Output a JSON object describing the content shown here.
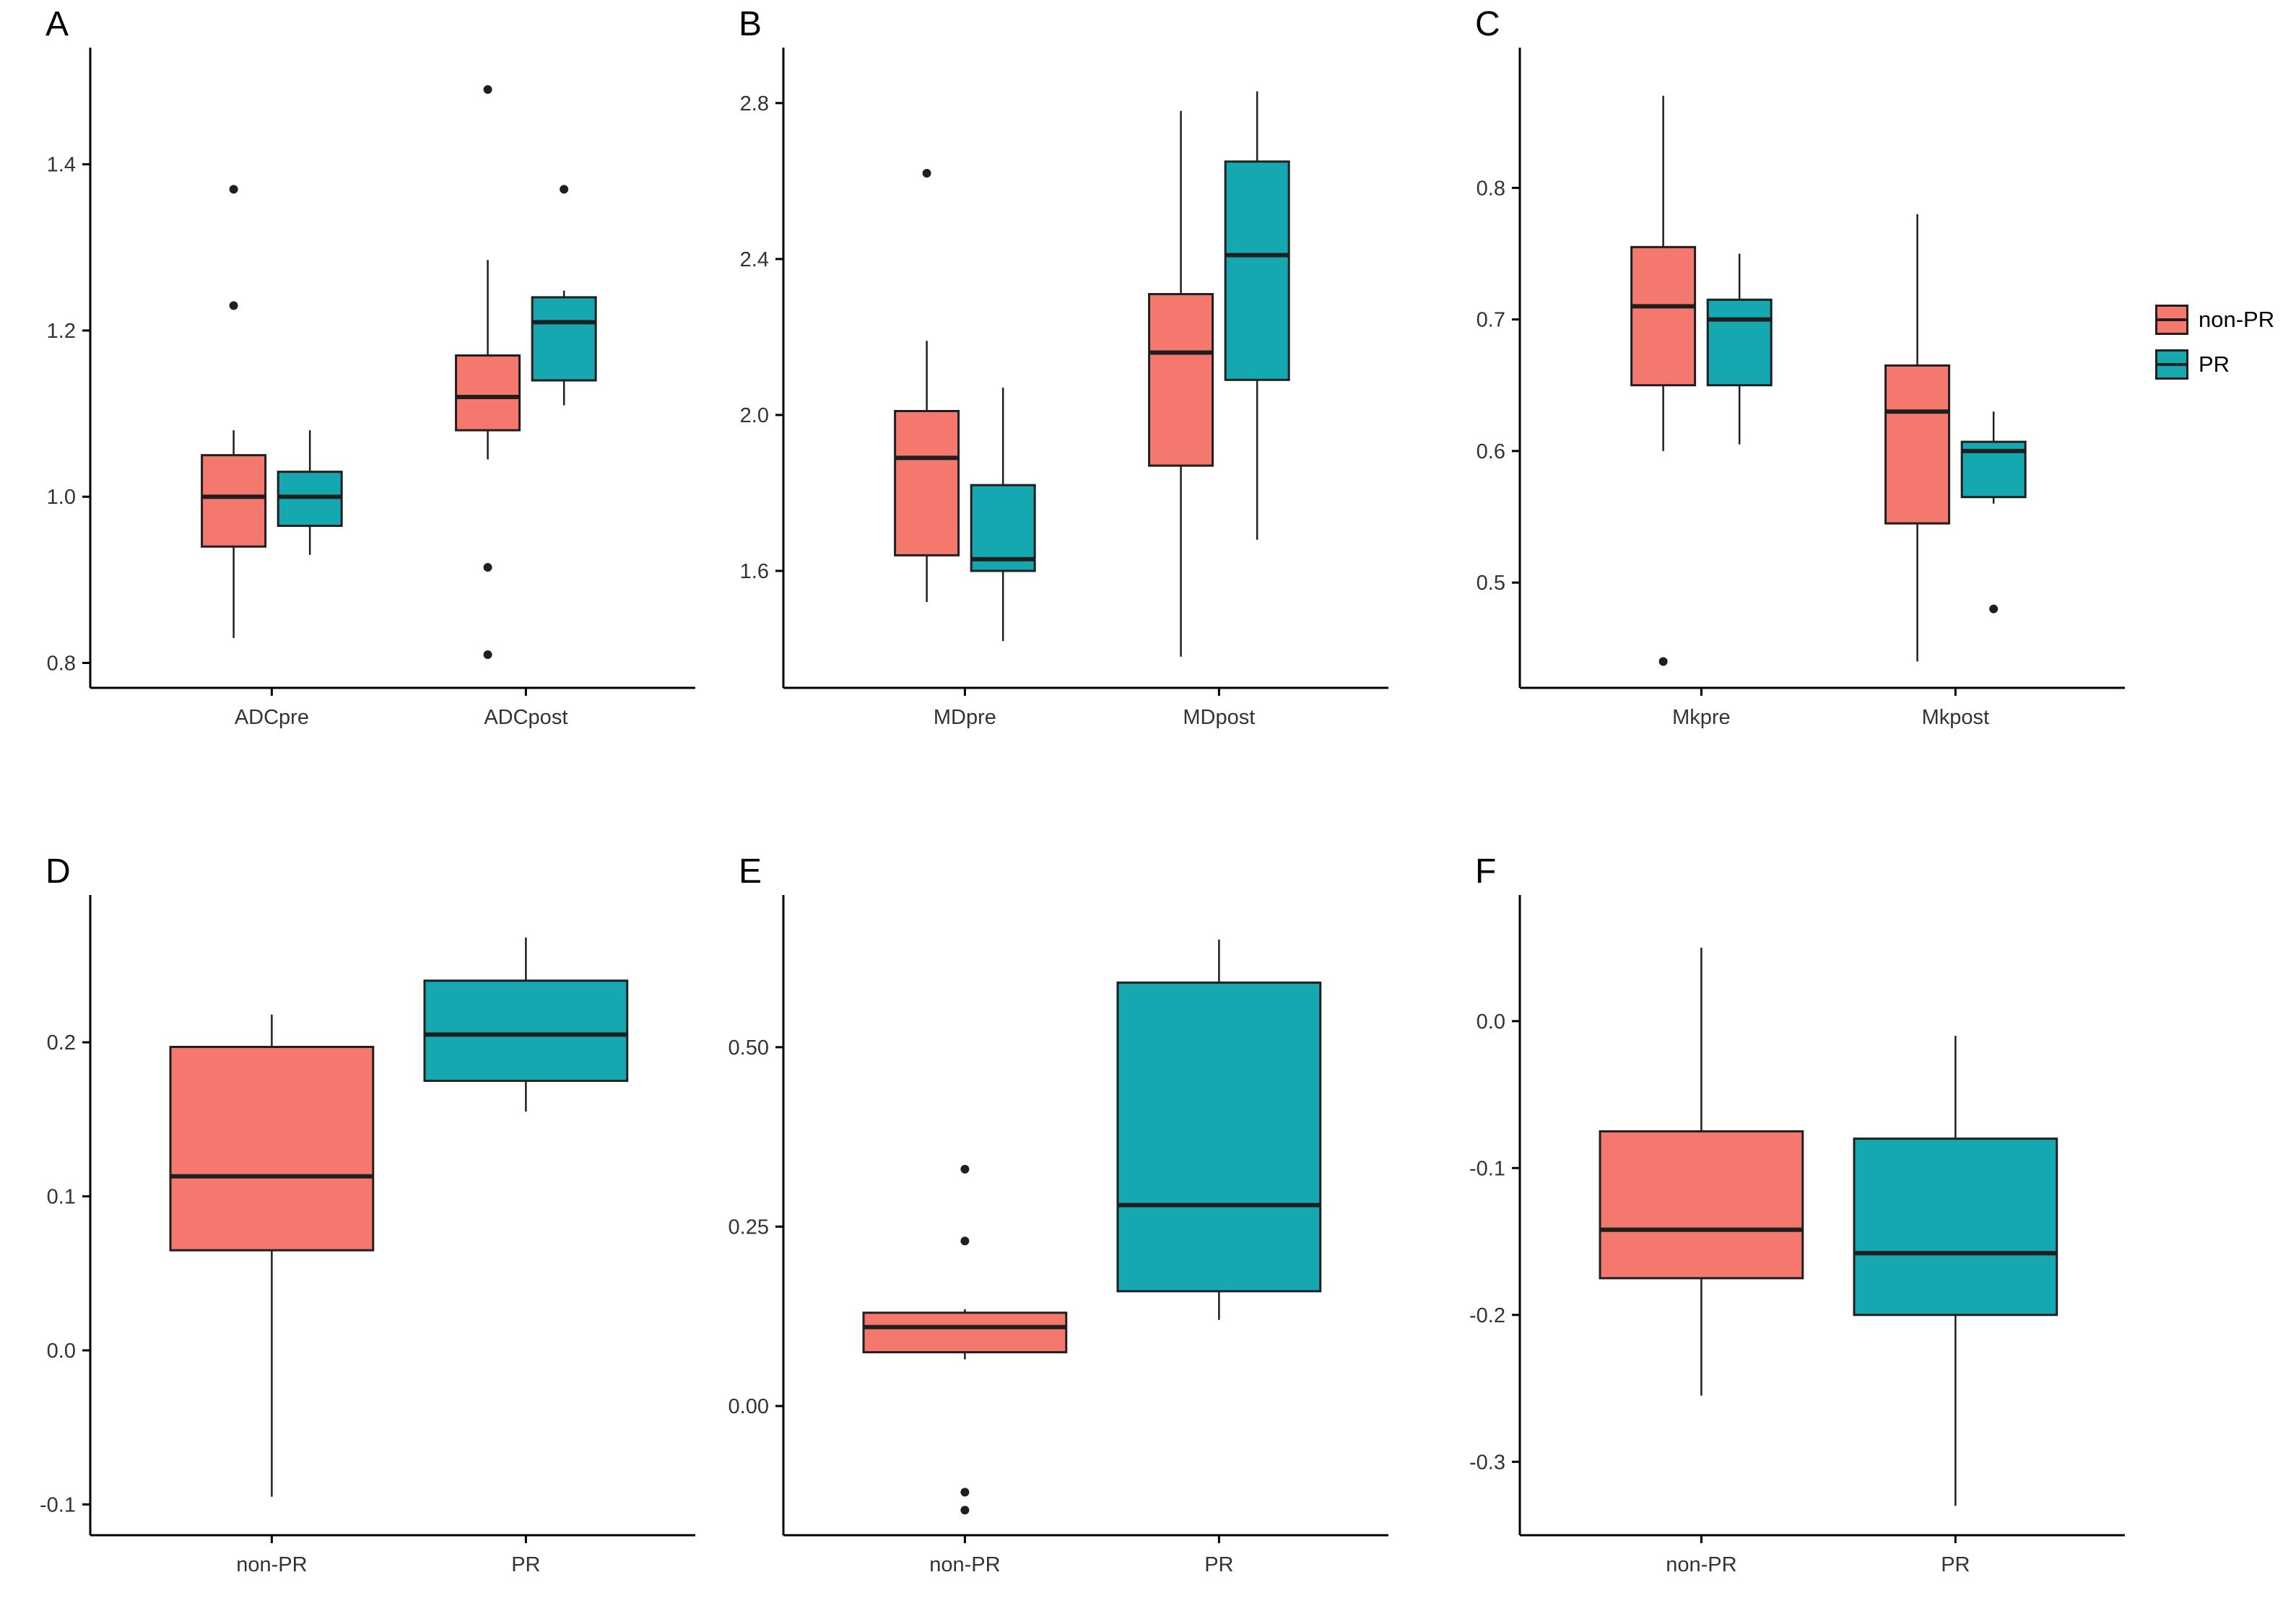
{
  "colors": {
    "non_pr": "#F4786D",
    "pr": "#16A8B0",
    "axis": "#000000",
    "box_stroke": "#1f1f1f",
    "tick_text": "#333333"
  },
  "legend": {
    "items": [
      {
        "label": "non-PR",
        "color_key": "non_pr"
      },
      {
        "label": "PR",
        "color_key": "pr"
      }
    ]
  },
  "chart_data": [
    {
      "panel_label": "A",
      "type": "boxplot",
      "grouped": true,
      "series": [
        "non-PR",
        "PR"
      ],
      "categories": [
        "ADCpre",
        "ADCpost"
      ],
      "y_domain": [
        0.77,
        1.53
      ],
      "y_ticks": [
        {
          "value": 0.8,
          "label": "0.8"
        },
        {
          "value": 1.0,
          "label": "1.0"
        },
        {
          "value": 1.2,
          "label": "1.2"
        },
        {
          "value": 1.4,
          "label": "1.4"
        }
      ],
      "boxes": [
        {
          "category": "ADCpre",
          "series": "non-PR",
          "color_key": "non_pr",
          "whisker_low": 0.83,
          "q1": 0.94,
          "median": 1.0,
          "q3": 1.05,
          "whisker_high": 1.08,
          "outliers": [
            1.23,
            1.37
          ]
        },
        {
          "category": "ADCpre",
          "series": "PR",
          "color_key": "pr",
          "whisker_low": 0.93,
          "q1": 0.965,
          "median": 1.0,
          "q3": 1.03,
          "whisker_high": 1.08,
          "outliers": []
        },
        {
          "category": "ADCpost",
          "series": "non-PR",
          "color_key": "non_pr",
          "whisker_low": 1.045,
          "q1": 1.08,
          "median": 1.12,
          "q3": 1.17,
          "whisker_high": 1.285,
          "outliers": [
            1.49,
            0.915,
            0.81
          ]
        },
        {
          "category": "ADCpost",
          "series": "PR",
          "color_key": "pr",
          "whisker_low": 1.11,
          "q1": 1.14,
          "median": 1.21,
          "q3": 1.24,
          "whisker_high": 1.248,
          "outliers": [
            1.37
          ]
        }
      ]
    },
    {
      "panel_label": "B",
      "type": "boxplot",
      "grouped": true,
      "series": [
        "non-PR",
        "PR"
      ],
      "categories": [
        "MDpre",
        "MDpost"
      ],
      "y_domain": [
        1.3,
        2.92
      ],
      "y_ticks": [
        {
          "value": 1.6,
          "label": "1.6"
        },
        {
          "value": 2.0,
          "label": "2.0"
        },
        {
          "value": 2.4,
          "label": "2.4"
        },
        {
          "value": 2.8,
          "label": "2.8"
        }
      ],
      "boxes": [
        {
          "category": "MDpre",
          "series": "non-PR",
          "color_key": "non_pr",
          "whisker_low": 1.52,
          "q1": 1.64,
          "median": 1.89,
          "q3": 2.01,
          "whisker_high": 2.19,
          "outliers": [
            2.62
          ]
        },
        {
          "category": "MDpre",
          "series": "PR",
          "color_key": "pr",
          "whisker_low": 1.42,
          "q1": 1.6,
          "median": 1.63,
          "q3": 1.82,
          "whisker_high": 2.07,
          "outliers": []
        },
        {
          "category": "MDpost",
          "series": "non-PR",
          "color_key": "non_pr",
          "whisker_low": 1.38,
          "q1": 1.87,
          "median": 2.16,
          "q3": 2.31,
          "whisker_high": 2.78,
          "outliers": []
        },
        {
          "category": "MDpost",
          "series": "PR",
          "color_key": "pr",
          "whisker_low": 1.68,
          "q1": 2.09,
          "median": 2.41,
          "q3": 2.65,
          "whisker_high": 2.83,
          "outliers": []
        }
      ]
    },
    {
      "panel_label": "C",
      "type": "boxplot",
      "grouped": true,
      "series": [
        "non-PR",
        "PR"
      ],
      "categories": [
        "Mkpre",
        "Mkpost"
      ],
      "y_domain": [
        0.42,
        0.9
      ],
      "y_ticks": [
        {
          "value": 0.5,
          "label": "0.5"
        },
        {
          "value": 0.6,
          "label": "0.6"
        },
        {
          "value": 0.7,
          "label": "0.7"
        },
        {
          "value": 0.8,
          "label": "0.8"
        }
      ],
      "boxes": [
        {
          "category": "Mkpre",
          "series": "non-PR",
          "color_key": "non_pr",
          "whisker_low": 0.6,
          "q1": 0.65,
          "median": 0.71,
          "q3": 0.755,
          "whisker_high": 0.87,
          "outliers": [
            0.44
          ]
        },
        {
          "category": "Mkpre",
          "series": "PR",
          "color_key": "pr",
          "whisker_low": 0.605,
          "q1": 0.65,
          "median": 0.7,
          "q3": 0.715,
          "whisker_high": 0.75,
          "outliers": []
        },
        {
          "category": "Mkpost",
          "series": "non-PR",
          "color_key": "non_pr",
          "whisker_low": 0.44,
          "q1": 0.545,
          "median": 0.63,
          "q3": 0.665,
          "whisker_high": 0.78,
          "outliers": []
        },
        {
          "category": "Mkpost",
          "series": "PR",
          "color_key": "pr",
          "whisker_low": 0.56,
          "q1": 0.565,
          "median": 0.6,
          "q3": 0.607,
          "whisker_high": 0.63,
          "outliers": [
            0.48
          ]
        }
      ]
    },
    {
      "panel_label": "D",
      "type": "boxplot",
      "grouped": false,
      "series": [
        "non-PR",
        "PR"
      ],
      "categories": [
        "non-PR",
        "PR"
      ],
      "y_domain": [
        -0.12,
        0.29
      ],
      "y_ticks": [
        {
          "value": -0.1,
          "label": "-0.1"
        },
        {
          "value": 0.0,
          "label": "0.0"
        },
        {
          "value": 0.1,
          "label": "0.1"
        },
        {
          "value": 0.2,
          "label": "0.2"
        }
      ],
      "boxes": [
        {
          "category": "non-PR",
          "series": "non-PR",
          "color_key": "non_pr",
          "whisker_low": -0.095,
          "q1": 0.065,
          "median": 0.113,
          "q3": 0.197,
          "whisker_high": 0.218,
          "outliers": []
        },
        {
          "category": "PR",
          "series": "PR",
          "color_key": "pr",
          "whisker_low": 0.155,
          "q1": 0.175,
          "median": 0.205,
          "q3": 0.24,
          "whisker_high": 0.268,
          "outliers": []
        }
      ]
    },
    {
      "panel_label": "E",
      "type": "boxplot",
      "grouped": false,
      "series": [
        "non-PR",
        "PR"
      ],
      "categories": [
        "non-PR",
        "PR"
      ],
      "y_domain": [
        -0.18,
        0.7
      ],
      "y_ticks": [
        {
          "value": 0.0,
          "label": "0.00"
        },
        {
          "value": 0.25,
          "label": "0.25"
        },
        {
          "value": 0.5,
          "label": "0.50"
        }
      ],
      "boxes": [
        {
          "category": "non-PR",
          "series": "non-PR",
          "color_key": "non_pr",
          "whisker_low": 0.065,
          "q1": 0.075,
          "median": 0.11,
          "q3": 0.13,
          "whisker_high": 0.135,
          "outliers": [
            0.33,
            0.23,
            -0.12,
            -0.145
          ]
        },
        {
          "category": "PR",
          "series": "PR",
          "color_key": "pr",
          "whisker_low": 0.12,
          "q1": 0.16,
          "median": 0.28,
          "q3": 0.59,
          "whisker_high": 0.65,
          "outliers": []
        }
      ]
    },
    {
      "panel_label": "F",
      "type": "boxplot",
      "grouped": false,
      "series": [
        "non-PR",
        "PR"
      ],
      "categories": [
        "non-PR",
        "PR"
      ],
      "y_domain": [
        -0.35,
        0.08
      ],
      "y_ticks": [
        {
          "value": 0.0,
          "label": "0.0"
        },
        {
          "value": -0.1,
          "label": "-0.1"
        },
        {
          "value": -0.2,
          "label": "-0.2"
        },
        {
          "value": -0.3,
          "label": "-0.3"
        }
      ],
      "boxes": [
        {
          "category": "non-PR",
          "series": "non-PR",
          "color_key": "non_pr",
          "whisker_low": -0.255,
          "q1": -0.175,
          "median": -0.142,
          "q3": -0.075,
          "whisker_high": 0.05,
          "outliers": []
        },
        {
          "category": "PR",
          "series": "PR",
          "color_key": "pr",
          "whisker_low": -0.33,
          "q1": -0.2,
          "median": -0.158,
          "q3": -0.08,
          "whisker_high": -0.01,
          "outliers": []
        }
      ]
    }
  ]
}
